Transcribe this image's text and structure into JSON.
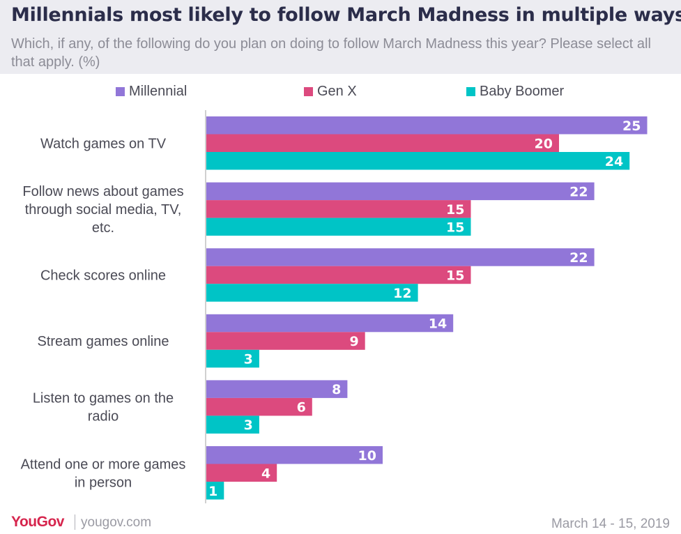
{
  "header": {
    "title": "Millennials most likely to follow March Madness in multiple ways",
    "subtitle": "Which, if any, of the following do you plan on doing to follow March Madness this year? Please select all that apply. (%)"
  },
  "colors": {
    "millennial": "#9176d8",
    "gen_x": "#dc4a7e",
    "baby_boomer": "#00c4c6",
    "header_bg": "#ececf1",
    "brand": "#d6254d"
  },
  "chart_data": {
    "type": "bar",
    "orientation": "horizontal",
    "title": "Millennials most likely to follow March Madness in multiple ways",
    "subtitle": "Which, if any, of the following do you plan on doing to follow March Madness this year? Please select all that apply. (%)",
    "categories": [
      "Watch games on TV",
      "Follow news about games through social media, TV, etc.",
      "Check scores online",
      "Stream games online",
      "Listen to games on the radio",
      "Attend one or more games in person"
    ],
    "category_lines": [
      [
        "Watch games on TV"
      ],
      [
        "Follow news about games",
        "through social media, TV,",
        "etc."
      ],
      [
        "Check scores online"
      ],
      [
        "Stream games online"
      ],
      [
        "Listen to games on the",
        "radio"
      ],
      [
        "Attend one or more games",
        "in person"
      ]
    ],
    "series": [
      {
        "name": "Millennial",
        "color": "#9176d8",
        "values": [
          25,
          22,
          22,
          14,
          8,
          10
        ]
      },
      {
        "name": "Gen X",
        "color": "#dc4a7e",
        "values": [
          20,
          15,
          15,
          9,
          6,
          4
        ]
      },
      {
        "name": "Baby Boomer",
        "color": "#00c4c6",
        "values": [
          24,
          15,
          12,
          3,
          3,
          1
        ]
      }
    ],
    "xlim": [
      0,
      25
    ],
    "legend_position": "top",
    "grid": false,
    "data_labels": true
  },
  "legend": {
    "items": [
      {
        "label": "Millennial",
        "color": "#9176d8"
      },
      {
        "label": "Gen X",
        "color": "#dc4a7e"
      },
      {
        "label": "Baby Boomer",
        "color": "#00c4c6"
      }
    ]
  },
  "footer": {
    "logo": "YouGov",
    "url": "yougov.com",
    "date": "March 14 - 15, 2019"
  }
}
